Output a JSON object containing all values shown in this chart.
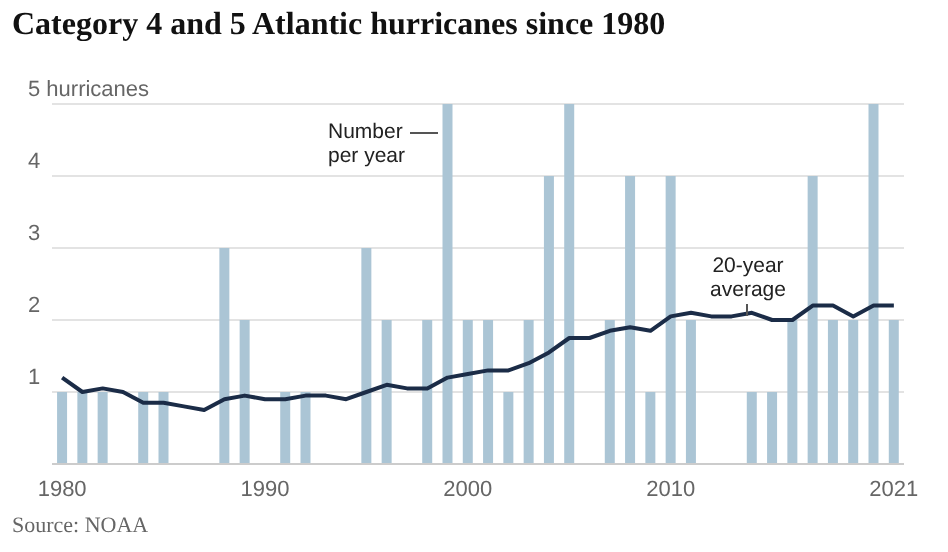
{
  "chart_data": {
    "type": "bar",
    "title": "Category 4 and 5 Atlantic hurricanes since 1980",
    "categories": [
      "1980",
      null,
      null,
      null,
      null,
      null,
      null,
      null,
      null,
      null,
      "1990",
      null,
      null,
      null,
      null,
      null,
      null,
      null,
      null,
      null,
      "2000",
      null,
      null,
      null,
      null,
      null,
      null,
      null,
      null,
      null,
      "2010",
      null,
      null,
      null,
      null,
      null,
      null,
      null,
      null,
      null,
      null,
      "2021"
    ],
    "series": [
      {
        "color": "#abc5d5",
        "values": [
          1,
          1,
          1,
          null,
          1,
          1,
          null,
          null,
          3,
          2,
          null,
          1,
          1,
          null,
          null,
          3,
          2,
          null,
          2,
          5,
          2,
          2,
          1,
          2,
          4,
          5,
          null,
          2,
          4,
          1,
          4,
          2,
          null,
          null,
          1,
          1,
          2,
          4,
          2,
          2,
          5,
          2
        ]
      },
      {
        "type": "line",
        "color": "#1b2c47",
        "values": [
          1.2,
          1.0,
          1.05,
          1.0,
          0.85,
          0.85,
          0.8,
          0.75,
          0.9,
          0.95,
          0.9,
          0.9,
          0.95,
          0.95,
          0.9,
          1.0,
          1.1,
          1.05,
          1.05,
          1.2,
          1.25,
          1.3,
          1.3,
          1.4,
          1.55,
          1.75,
          1.75,
          1.85,
          1.9,
          1.85,
          2.05,
          2.1,
          2.05,
          2.05,
          2.1,
          2.0,
          2.0,
          2.2,
          2.2,
          2.05,
          2.2,
          2.2
        ]
      }
    ],
    "ylim": [
      0,
      5
    ],
    "yticks": [
      {
        "value": 0,
        "label": null
      },
      1,
      2,
      3,
      4,
      {
        "value": 5,
        "label": "5 hurricanes"
      }
    ],
    "grid": "y",
    "marker": "none",
    "line_style": "solid",
    "annotations": [
      "Number per year",
      "20-year average",
      "Source: NOAA"
    ]
  }
}
